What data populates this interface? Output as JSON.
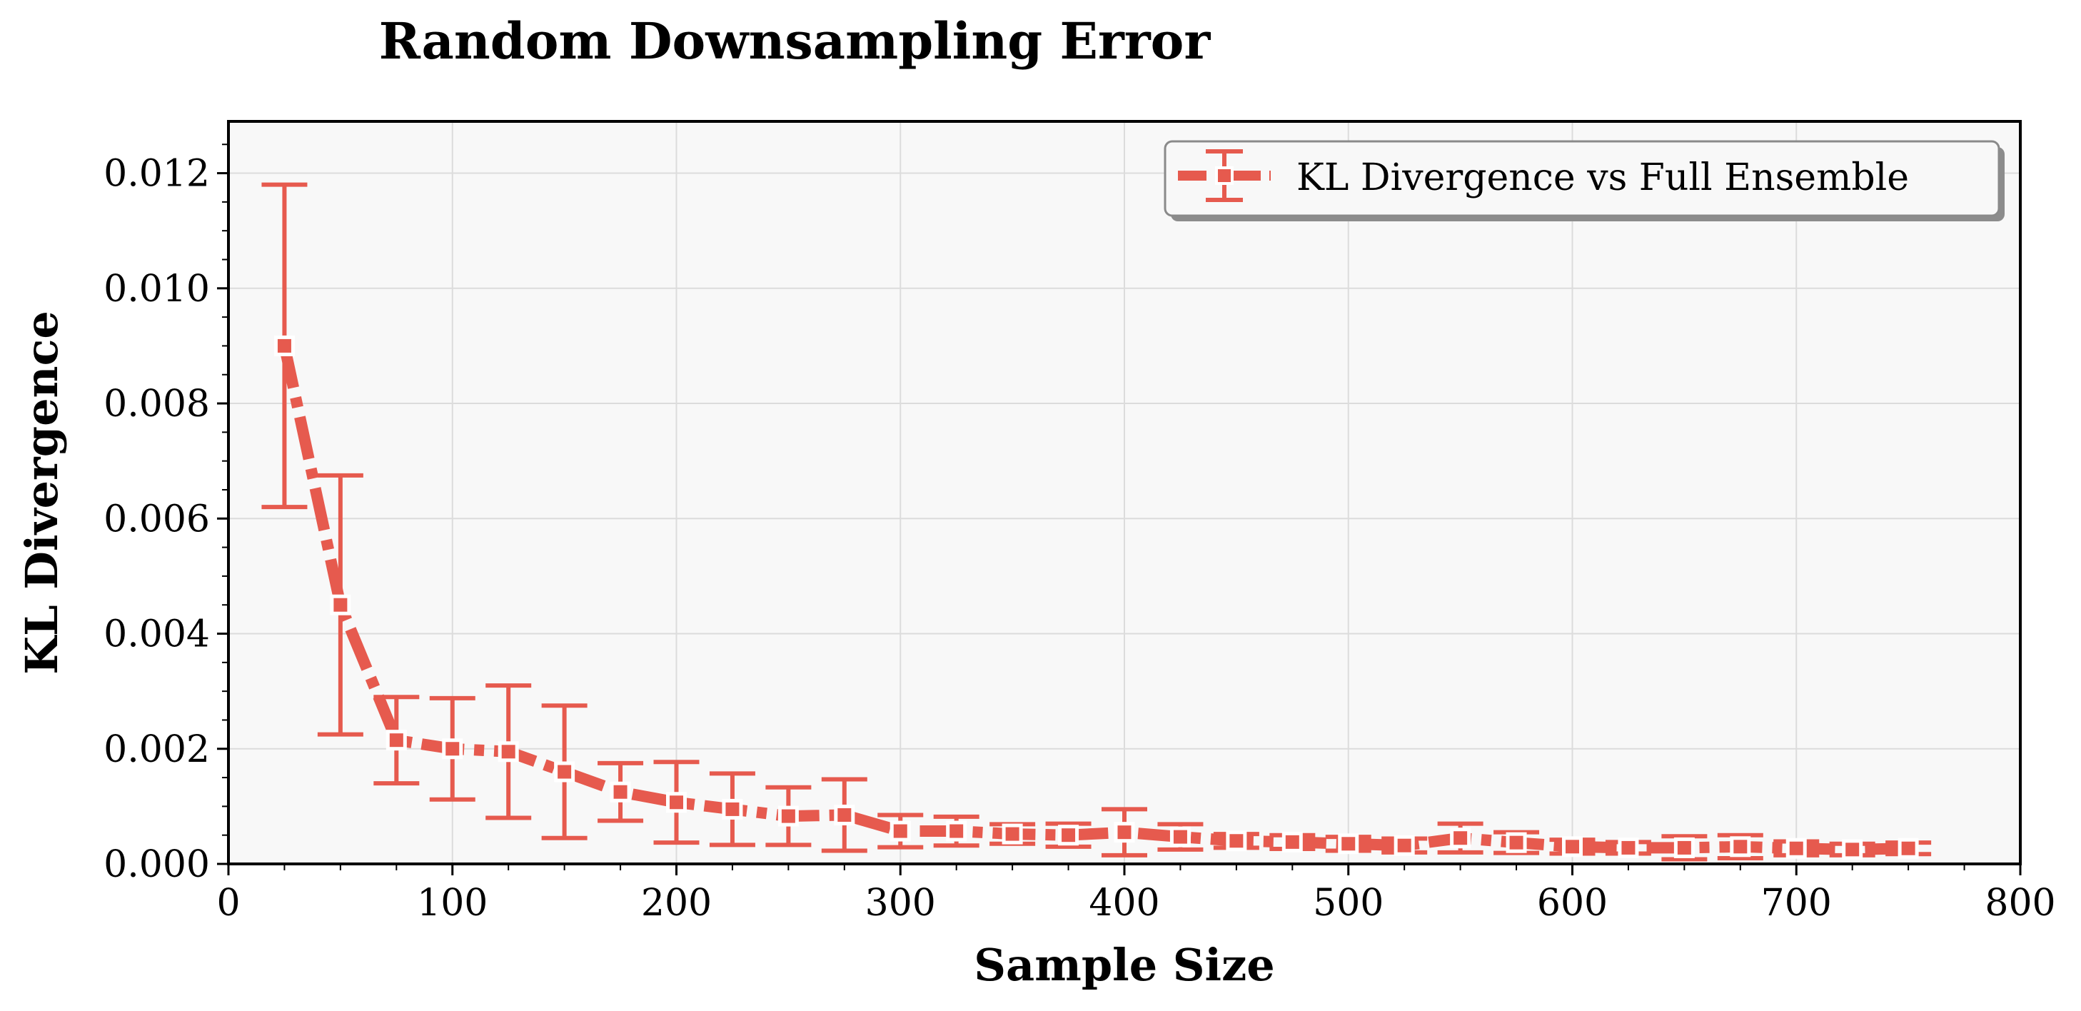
{
  "chart_data": {
    "type": "line",
    "title": "Random Downsampling Error",
    "xlabel": "Sample Size",
    "ylabel": "KL Divergence",
    "xlim": [
      0,
      800
    ],
    "ylim": [
      0,
      0.0129
    ],
    "xticks": [
      0,
      100,
      200,
      300,
      400,
      500,
      600,
      700,
      800
    ],
    "xtick_labels": [
      "0",
      "100",
      "200",
      "300",
      "400",
      "500",
      "600",
      "700",
      "800"
    ],
    "yticks": [
      0,
      0.002,
      0.004,
      0.006,
      0.008,
      0.01,
      0.012
    ],
    "ytick_labels": [
      "0.000",
      "0.002",
      "0.004",
      "0.006",
      "0.008",
      "0.010",
      "0.012"
    ],
    "grid": true,
    "legend_position": "top-right",
    "colors": {
      "series": "#e65a4e",
      "plot_background": "#f8f8f8",
      "grid": "#dcdcdc"
    },
    "series": [
      {
        "name": "KL Divergence vs Full Ensemble",
        "style": "dash-dot with error bars",
        "x": [
          25,
          50,
          75,
          100,
          125,
          150,
          175,
          200,
          225,
          250,
          275,
          300,
          325,
          350,
          375,
          400,
          425,
          450,
          475,
          500,
          525,
          550,
          575,
          600,
          625,
          650,
          675,
          700,
          725,
          750
        ],
        "values": [
          0.009,
          0.0045,
          0.00215,
          0.002,
          0.00195,
          0.0016,
          0.00125,
          0.00107,
          0.00095,
          0.00083,
          0.00085,
          0.00057,
          0.00057,
          0.00052,
          0.0005,
          0.00055,
          0.00047,
          0.0004,
          0.00038,
          0.00035,
          0.00032,
          0.00045,
          0.00037,
          0.0003,
          0.00028,
          0.00028,
          0.0003,
          0.00027,
          0.00025,
          0.00027
        ],
        "error": [
          0.0028,
          0.00225,
          0.00075,
          0.00088,
          0.00115,
          0.00115,
          0.0005,
          0.0007,
          0.00062,
          0.0005,
          0.00062,
          0.00028,
          0.00025,
          0.00017,
          0.0002,
          0.0004,
          0.00022,
          0.00012,
          0.00012,
          0.00012,
          0.00012,
          0.00025,
          0.00018,
          0.00012,
          0.0001,
          0.0002,
          0.0002,
          0.00012,
          0.0001,
          0.0001
        ]
      }
    ]
  }
}
